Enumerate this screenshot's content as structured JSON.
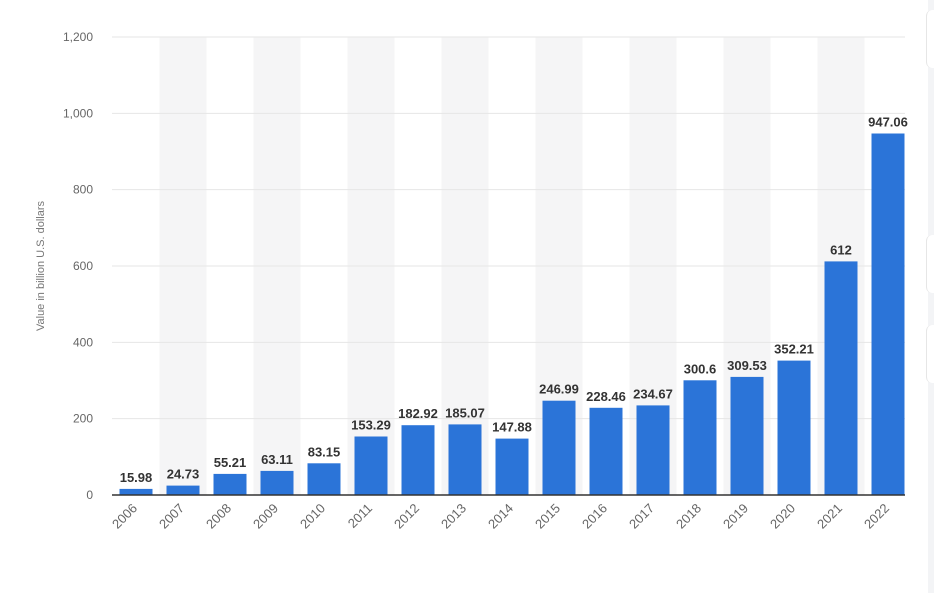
{
  "chart_data": {
    "type": "bar",
    "title": "",
    "xlabel": "",
    "ylabel": "Value in billion U.S. dollars",
    "categories": [
      "2006",
      "2007",
      "2008",
      "2009",
      "2010",
      "2011",
      "2012",
      "2013",
      "2014",
      "2015",
      "2016",
      "2017",
      "2018",
      "2019",
      "2020",
      "2021",
      "2022"
    ],
    "values": [
      15.98,
      24.73,
      55.21,
      63.11,
      83.15,
      153.29,
      182.92,
      185.07,
      147.88,
      246.99,
      228.46,
      234.67,
      300.6,
      309.53,
      352.21,
      612,
      947.06
    ],
    "value_labels": [
      "15.98",
      "24.73",
      "55.21",
      "63.11",
      "83.15",
      "153.29",
      "182.92",
      "185.07",
      "147.88",
      "246.99",
      "228.46",
      "234.67",
      "300.6",
      "309.53",
      "352.21",
      "612",
      "947.06"
    ],
    "ylim": [
      0,
      1200
    ],
    "yticks": [
      0,
      200,
      400,
      600,
      800,
      1000,
      1200
    ],
    "ytick_labels": [
      "0",
      "200",
      "400",
      "600",
      "800",
      "1,000",
      "1,200"
    ],
    "grid": true,
    "legend": "none",
    "colors": {
      "bar": "#2b74d8",
      "band": "#f5f5f6",
      "grid": "#e6e6e6",
      "axis": "#333333",
      "tick_text": "#666666",
      "value_text": "#333333",
      "ylabel_text": "#777777"
    }
  }
}
